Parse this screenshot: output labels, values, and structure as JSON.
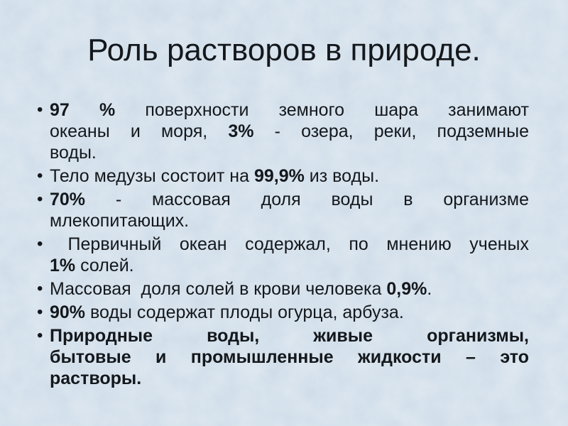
{
  "slide": {
    "title": "Роль растворов в природе.",
    "bullet_glyph": "•",
    "colors": {
      "background": "#cfdde9",
      "text": "#14181c"
    },
    "bullets": [
      {
        "lines": [
          [
            {
              "t": "97 %",
              "b": true
            },
            {
              "t": " поверхности земного шара занимают",
              "b": false
            }
          ],
          [
            {
              "t": "океаны и моря, ",
              "b": false
            },
            {
              "t": "3%",
              "b": true
            },
            {
              "t": " - озера, реки, подземные",
              "b": false
            }
          ],
          [
            {
              "t": "воды.",
              "b": false
            }
          ]
        ]
      },
      {
        "lines": [
          [
            {
              "t": "Тело медузы состоит на ",
              "b": false
            },
            {
              "t": "99,9%",
              "b": true
            },
            {
              "t": " из воды.",
              "b": false
            }
          ]
        ]
      },
      {
        "lines": [
          [
            {
              "t": "70%",
              "b": true
            },
            {
              "t": " - массовая доля воды в организме",
              "b": false
            }
          ],
          [
            {
              "t": "млекопитающих.",
              "b": false
            }
          ]
        ]
      },
      {
        "lines": [
          [
            {
              "t": " Первичный океан содержал, по мнению ученых",
              "b": false
            }
          ],
          [
            {
              "t": "1%",
              "b": true
            },
            {
              "t": " солей.",
              "b": false
            }
          ]
        ]
      },
      {
        "lines": [
          [
            {
              "t": "Массовая  доля солей в крови человека ",
              "b": false
            },
            {
              "t": "0,9%",
              "b": true
            },
            {
              "t": ".",
              "b": false
            }
          ]
        ]
      },
      {
        "lines": [
          [
            {
              "t": "90%",
              "b": true
            },
            {
              "t": " воды содержат плоды огурца, арбуза.",
              "b": false
            }
          ]
        ]
      },
      {
        "lines": [
          [
            {
              "t": "Природные воды, живые организмы,",
              "b": true
            }
          ],
          [
            {
              "t": "бытовые и промышленные жидкости – это",
              "b": true
            }
          ],
          [
            {
              "t": "растворы.",
              "b": true
            }
          ]
        ]
      }
    ]
  }
}
